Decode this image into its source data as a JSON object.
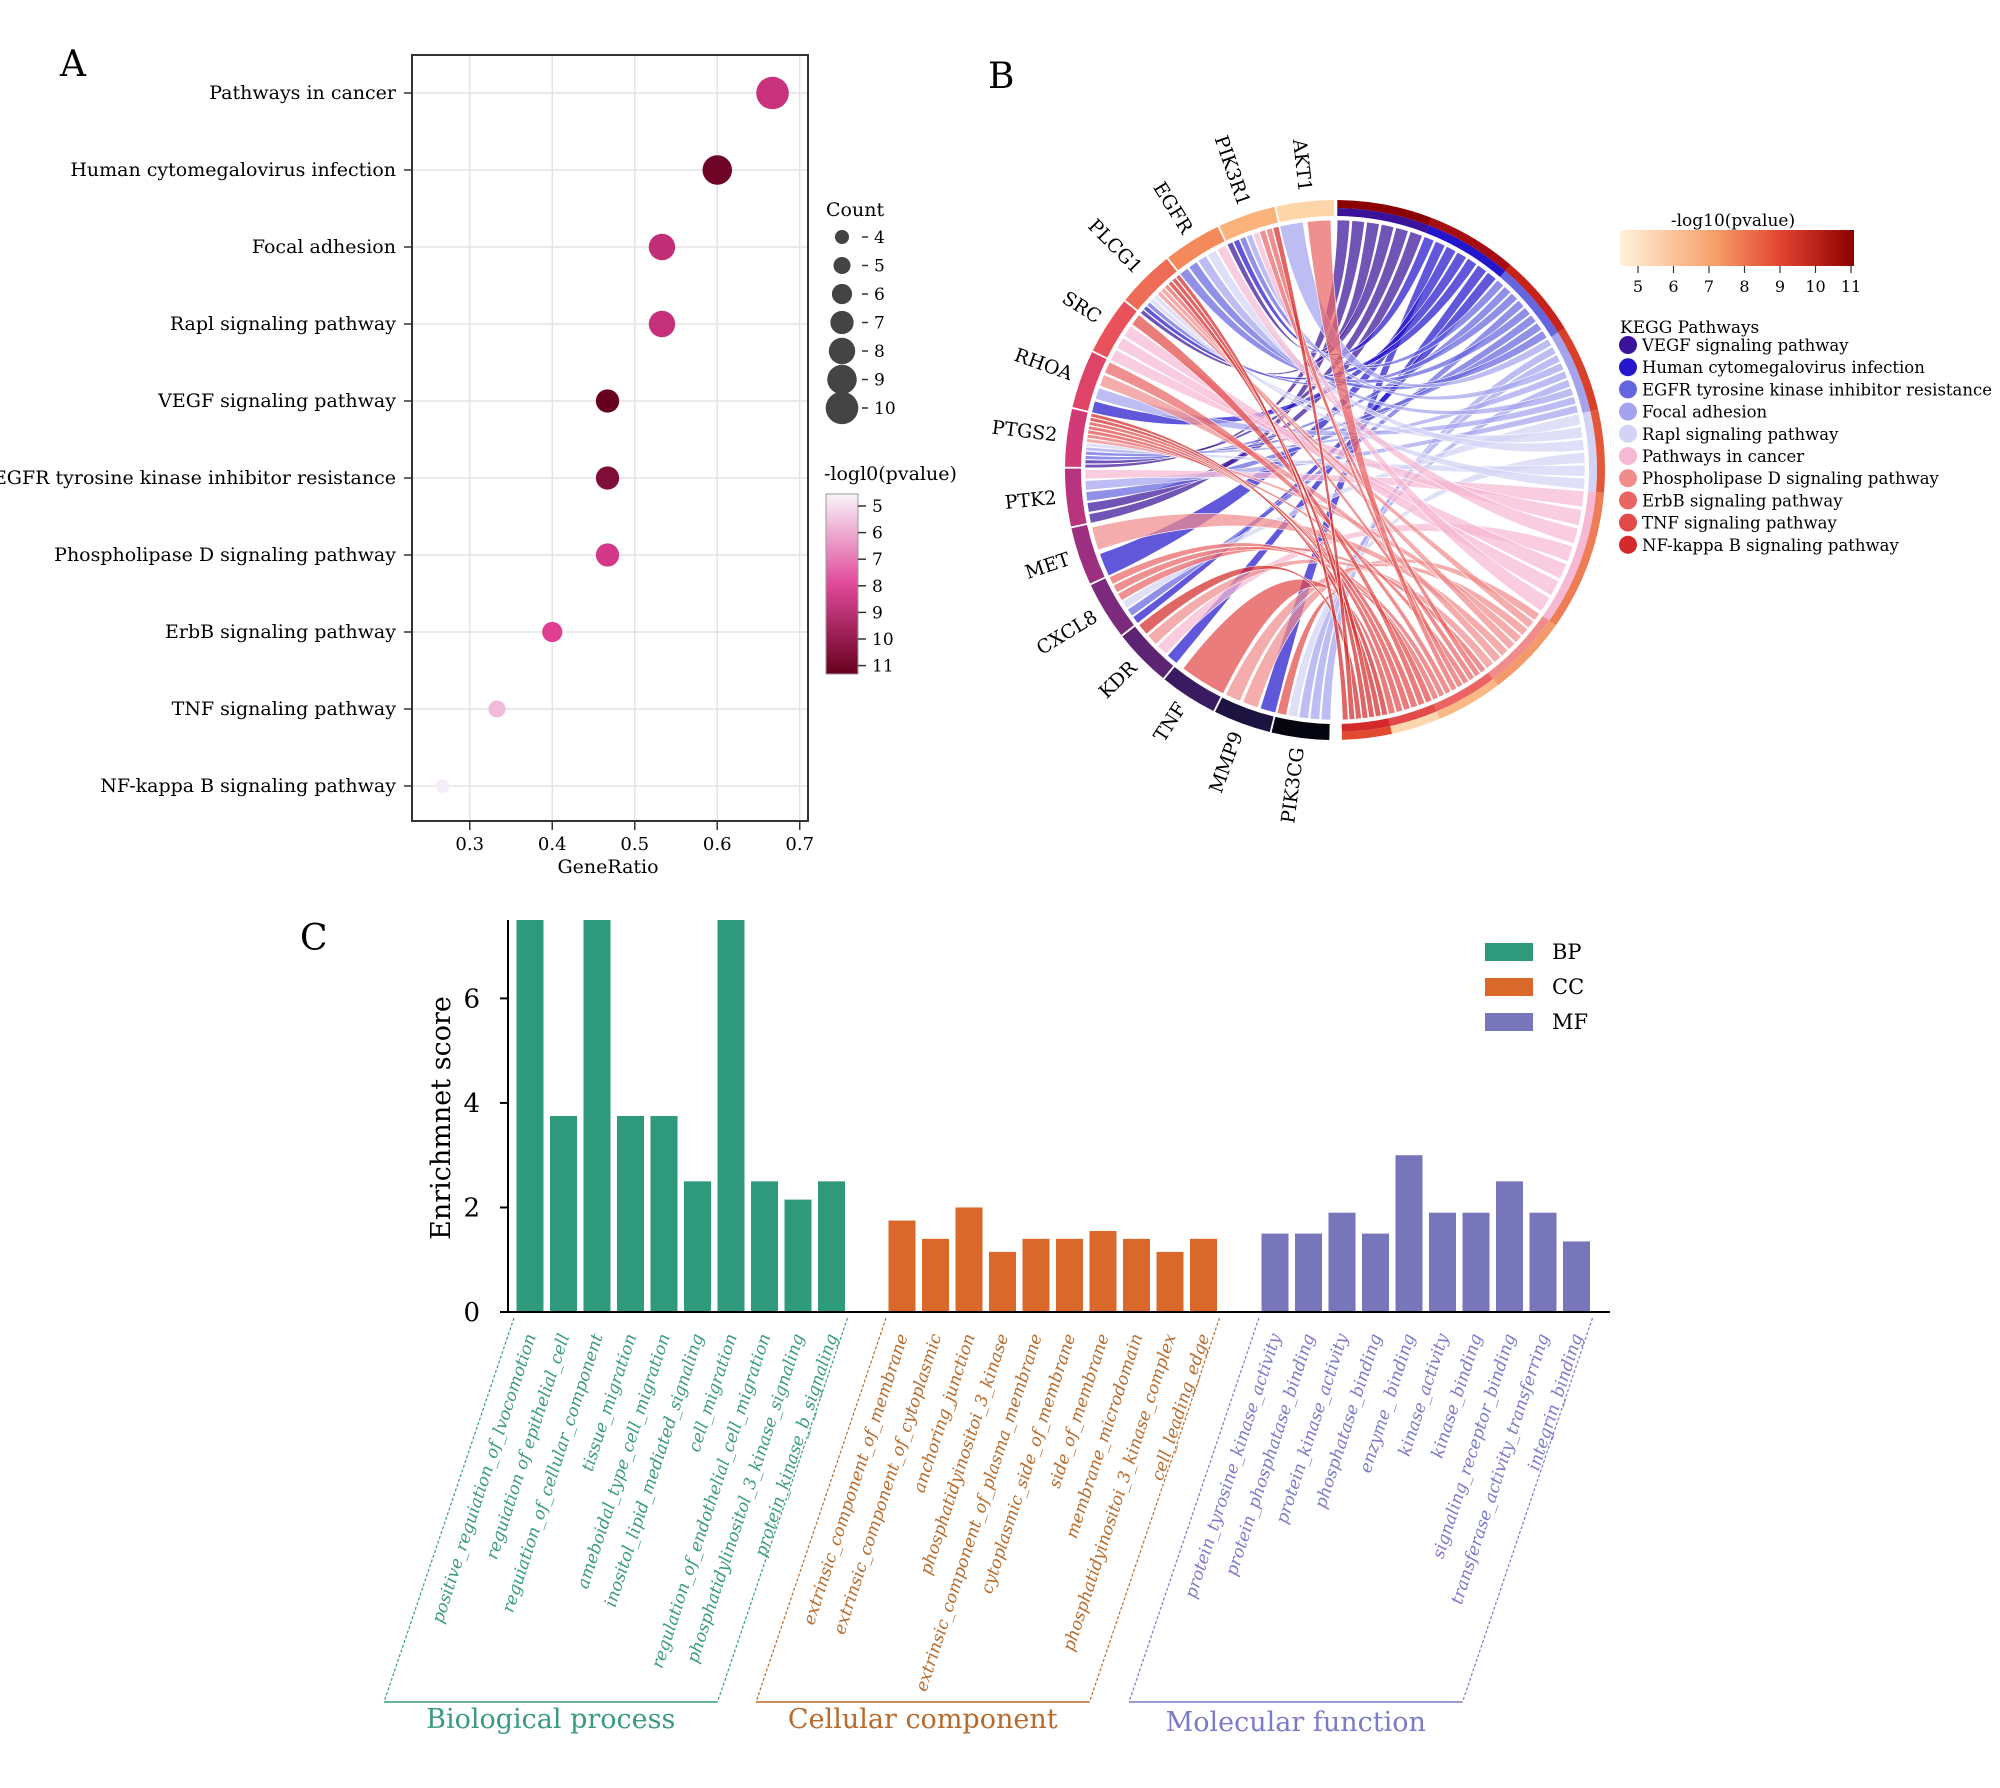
{
  "chart_data": [
    {
      "panel": "A",
      "type": "scatter",
      "subtype": "dot-plot",
      "xlabel": "GeneRatio",
      "xlim": [
        0.23,
        0.71
      ],
      "xticks": [
        0.3,
        0.4,
        0.5,
        0.6,
        0.7
      ],
      "categories": [
        "Pathways in cancer",
        "Human cytomegalovirus infection",
        "Focal adhesion",
        "Rapl signaling pathway",
        "VEGF signaling pathway",
        "EGFR tyrosine kinase inhibitor resistance",
        "Phospholipase D signaling pathway",
        "ErbB signaling pathway",
        "TNF signaling pathway",
        "NF-kappa B signaling pathway"
      ],
      "gene_ratio": [
        0.667,
        0.6,
        0.533,
        0.533,
        0.467,
        0.467,
        0.467,
        0.4,
        0.333,
        0.267
      ],
      "count": [
        10,
        9,
        8,
        8,
        7,
        7,
        7,
        6,
        5,
        4
      ],
      "neg_log10_pvalue": [
        8.6,
        11.0,
        8.8,
        8.7,
        11.2,
        10.5,
        8.3,
        8.0,
        5.8,
        4.9
      ],
      "legend_count": {
        "title": "Count",
        "values": [
          4,
          5,
          6,
          7,
          8,
          9,
          10
        ]
      },
      "legend_color": {
        "title": "-logl0(pvalue)",
        "values": [
          5,
          6,
          7,
          8,
          9,
          10,
          11
        ]
      },
      "colors": {
        "low": "#f7f4f9",
        "mid": "#df3e93",
        "high": "#67001f"
      }
    },
    {
      "panel": "B",
      "type": "chord",
      "genes": [
        "AKT1",
        "PIK3R1",
        "EGFR",
        "PLCG1",
        "SRC",
        "RHOA",
        "PTGS2",
        "PTK2",
        "MET",
        "CXCL8",
        "KDR",
        "TNF",
        "MMP9",
        "PIK3CG"
      ],
      "pathways": [
        {
          "name": "VEGF signaling pathway",
          "color": "#3a139a"
        },
        {
          "name": "Human cytomegalovirus infection",
          "color": "#2416cc"
        },
        {
          "name": "EGFR tyrosine kinase inhibitor resistance",
          "color": "#6565df"
        },
        {
          "name": "Focal adhesion",
          "color": "#a3a3ee"
        },
        {
          "name": "Rapl signaling pathway",
          "color": "#d3d3f5"
        },
        {
          "name": "Pathways in cancer",
          "color": "#f7b8d3"
        },
        {
          "name": "Phospholipase D signaling pathway",
          "color": "#f08c8c"
        },
        {
          "name": "ErbB signaling pathway",
          "color": "#ea6464"
        },
        {
          "name": "TNF signaling pathway",
          "color": "#e24a4a"
        },
        {
          "name": "NF-kappa B signaling pathway",
          "color": "#d42a2a"
        }
      ],
      "legend_title": "KEGG Pathways",
      "colorbar_title": "-log10(pvalue)",
      "colorbar_ticks": [
        5,
        6,
        7,
        8,
        9,
        10,
        11
      ]
    },
    {
      "panel": "C",
      "type": "bar",
      "ylabel": "Enrichmnet score",
      "ylim": [
        0,
        7.5
      ],
      "yticks": [
        0,
        2,
        4,
        6
      ],
      "series": [
        {
          "name": "BP",
          "group_label": "Biological process",
          "color": "#2e9a7b",
          "text_color": "#3a9a80",
          "categories": [
            "positive_reguiation_of_lvocomotion",
            "reguiation of epithelial_cell",
            "reguiation_of_cellular_component",
            "tissue_migration",
            "ameboidal_type_cell_migration",
            "inositol_lipid_mediated_signaling",
            "cell_migration",
            "regulation_of_endothelial_cell_migration",
            "phosphatidylinositol_3_kinase_signaling",
            "protein_kinase_b_signaling"
          ],
          "values": [
            7.5,
            3.75,
            7.5,
            3.75,
            3.75,
            2.5,
            7.5,
            2.5,
            2.15,
            2.5
          ]
        },
        {
          "name": "CC",
          "group_label": "Cellular component",
          "color": "#d9682a",
          "text_color": "#b86a2c",
          "categories": [
            "extrinsic_component_of_membrane",
            "extrinsic_component_of_cytoplasmic",
            "anchoring_junction",
            "phosphatidyinositoi_3_kinase",
            "extrinsic_component_of_plasma_membrane",
            "cytoplasmic_side_of_membrane",
            "side_of_membrane",
            "membrane_microdomain",
            "phosphatidyinositoi_3_kinase_complex",
            "cell_leading_edge"
          ],
          "values": [
            1.75,
            1.4,
            2.0,
            1.15,
            1.4,
            1.4,
            1.55,
            1.4,
            1.15,
            1.4
          ]
        },
        {
          "name": "MF",
          "group_label": "Molecular function",
          "color": "#7776bb",
          "text_color": "#7b7ac9",
          "categories": [
            "protein_tyrosine_kinase_activity",
            "protein_phosphatase_binding",
            "protein_kinase_activity",
            "phosphatase_binding",
            "enzyme_ binding",
            "kinase_activity",
            "kinase_binding",
            "signaling_receptor_binding",
            "transferase_activity_transferring",
            "integrin_binding"
          ],
          "values": [
            1.5,
            1.5,
            1.9,
            1.5,
            3.0,
            1.9,
            1.9,
            2.5,
            1.9,
            1.35
          ]
        }
      ]
    }
  ],
  "panel_labels": {
    "a": "A",
    "b": "B",
    "c": "C"
  }
}
